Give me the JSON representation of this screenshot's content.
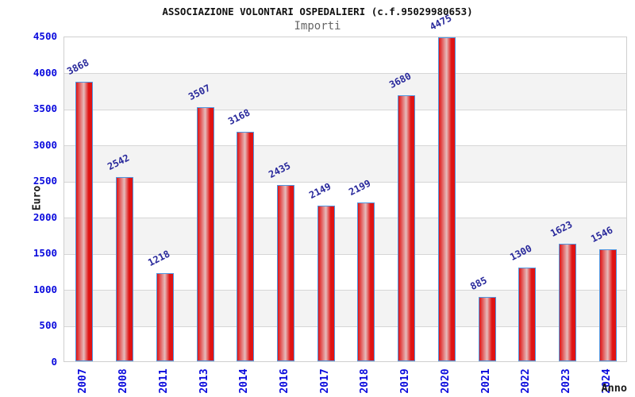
{
  "chart_data": {
    "type": "bar",
    "title": "ASSOCIAZIONE VOLONTARI OSPEDALIERI (c.f.95029980653)",
    "subtitle": "Importi",
    "xlabel": "Anno",
    "ylabel": "Euro",
    "categories": [
      "2007",
      "2008",
      "2011",
      "2013",
      "2014",
      "2016",
      "2017",
      "2018",
      "2019",
      "2020",
      "2021",
      "2022",
      "2023",
      "2024"
    ],
    "values": [
      3868,
      2542,
      1218,
      3507,
      3168,
      2435,
      2149,
      2199,
      3680,
      4475,
      885,
      1300,
      1623,
      1546
    ],
    "ylim": [
      0,
      4500
    ],
    "ytick_step": 500,
    "yticks": [
      0,
      500,
      1000,
      1500,
      2000,
      2500,
      3000,
      3500,
      4000,
      4500
    ],
    "grid": true,
    "legend": "none",
    "band_pattern": "alternating gray bands between 500-unit intervals (gray: 500-1000, 1500-2000, 2500-3000, 3500-4000)",
    "colors": {
      "bar_red": "#e01313",
      "bar_center_highlight": "#e6bcbc",
      "bar_border_blue": "#4f96e0",
      "tick_label_blue": "#0a0add",
      "value_label_navy": "#28289b",
      "title_black": "#111111",
      "subtitle_gray": "#666666",
      "gridline_gray": "#d6d6d6",
      "band_gray": "#f3f3f3",
      "plot_border": "#cfcfcf",
      "background": "#ffffff"
    }
  }
}
